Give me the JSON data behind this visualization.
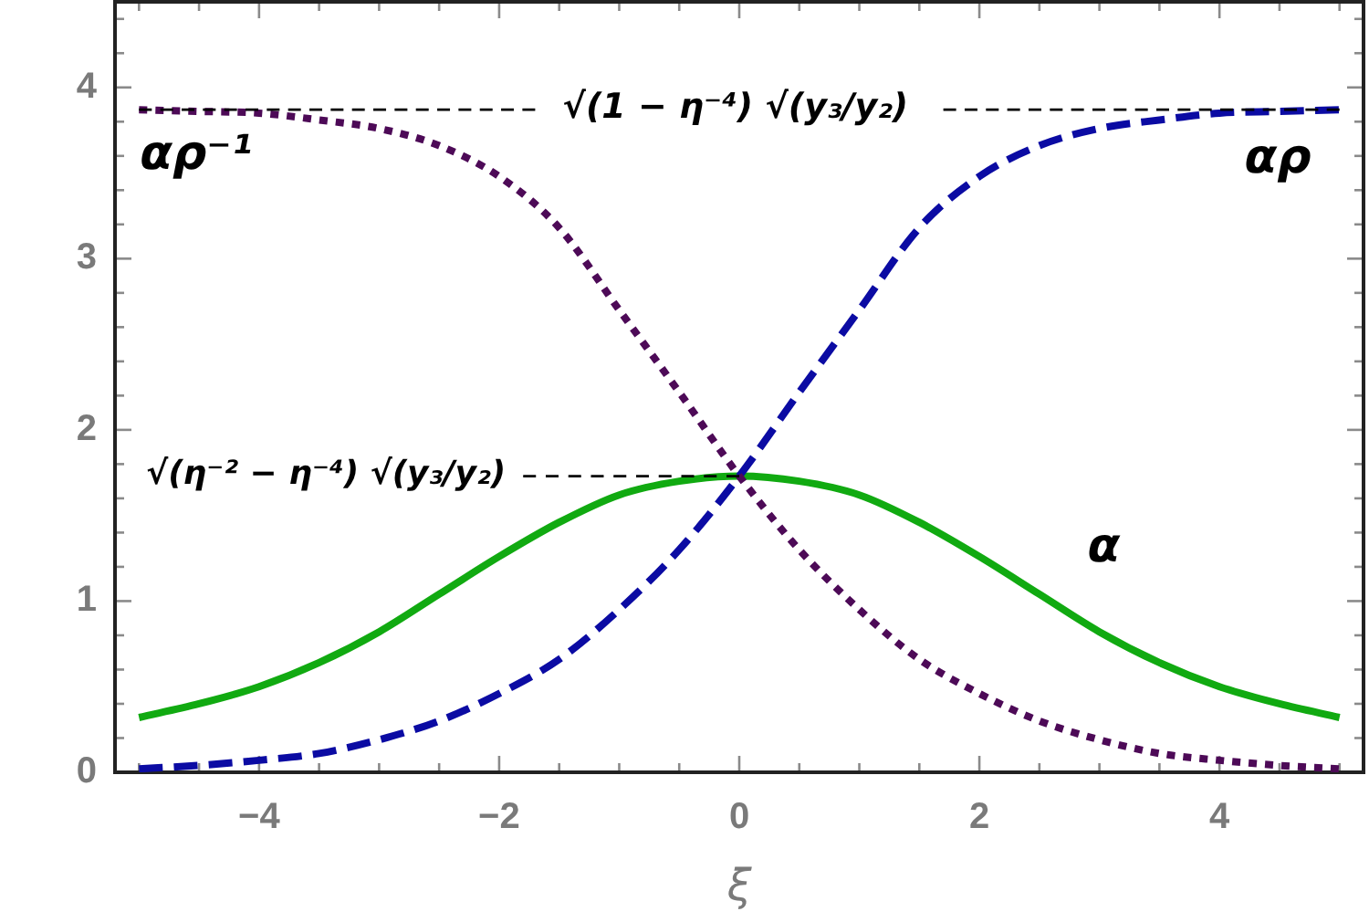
{
  "chart_data": {
    "type": "line",
    "xlabel": "ξ",
    "xlim": [
      -5.2,
      5.2
    ],
    "ylim": [
      0,
      4.5
    ],
    "xticks": [
      {
        "value": -5,
        "label": null
      },
      {
        "value": -4.5,
        "label": null
      },
      {
        "value": -4,
        "label": "−4"
      },
      {
        "value": -3.5,
        "label": null
      },
      {
        "value": -3,
        "label": null
      },
      {
        "value": -2.5,
        "label": null
      },
      {
        "value": -2,
        "label": "−2"
      },
      {
        "value": -1.5,
        "label": null
      },
      {
        "value": -1,
        "label": null
      },
      {
        "value": -0.5,
        "label": null
      },
      0,
      {
        "value": 0.5,
        "label": null
      },
      {
        "value": 1,
        "label": null
      },
      {
        "value": 1.5,
        "label": null
      },
      2,
      {
        "value": 2.5,
        "label": null
      },
      {
        "value": 3,
        "label": null
      },
      {
        "value": 3.5,
        "label": null
      },
      4,
      {
        "value": 4.5,
        "label": null
      },
      {
        "value": 5,
        "label": null
      }
    ],
    "yticks": [
      0,
      {
        "value": 0.2,
        "label": null
      },
      {
        "value": 0.4,
        "label": null
      },
      {
        "value": 0.6,
        "label": null
      },
      {
        "value": 0.8,
        "label": null
      },
      1,
      {
        "value": 1.2,
        "label": null
      },
      {
        "value": 1.4,
        "label": null
      },
      {
        "value": 1.6,
        "label": null
      },
      {
        "value": 1.8,
        "label": null
      },
      2,
      {
        "value": 2.2,
        "label": null
      },
      {
        "value": 2.4,
        "label": null
      },
      {
        "value": 2.6,
        "label": null
      },
      {
        "value": 2.8,
        "label": null
      },
      3,
      {
        "value": 3.2,
        "label": null
      },
      {
        "value": 3.4,
        "label": null
      },
      {
        "value": 3.6,
        "label": null
      },
      {
        "value": 3.8,
        "label": null
      },
      4,
      {
        "value": 4.2,
        "label": null
      },
      {
        "value": 4.4,
        "label": null
      }
    ],
    "series": [
      {
        "name": "α",
        "color": "#11aa11",
        "line_style": "solid",
        "x": [
          -5,
          -4.5,
          -4,
          -3.5,
          -3,
          -2.5,
          -2,
          -1.5,
          -1,
          -0.5,
          0,
          0.5,
          1,
          1.5,
          2,
          2.5,
          3,
          3.5,
          4,
          4.5,
          5
        ],
        "values": [
          0.32,
          0.4,
          0.5,
          0.64,
          0.82,
          1.04,
          1.26,
          1.46,
          1.62,
          1.7,
          1.73,
          1.7,
          1.62,
          1.46,
          1.26,
          1.04,
          0.82,
          0.64,
          0.5,
          0.4,
          0.32
        ]
      },
      {
        "name": "αρ",
        "color": "#0b0ba3",
        "line_style": "dashed",
        "x": [
          -5,
          -4.5,
          -4,
          -3.5,
          -3,
          -2.5,
          -2,
          -1.5,
          -1,
          -0.5,
          0,
          0.5,
          1,
          1.5,
          2,
          2.5,
          3,
          3.5,
          4,
          4.5,
          5
        ],
        "values": [
          0.02,
          0.04,
          0.07,
          0.11,
          0.19,
          0.3,
          0.46,
          0.66,
          0.95,
          1.3,
          1.73,
          2.22,
          2.7,
          3.18,
          3.48,
          3.66,
          3.76,
          3.81,
          3.85,
          3.86,
          3.87
        ]
      },
      {
        "name": "αρ⁻¹",
        "color": "#4d0a57",
        "line_style": "dotted",
        "x": [
          -5,
          -4.5,
          -4,
          -3.5,
          -3,
          -2.5,
          -2,
          -1.5,
          -1,
          -0.5,
          0,
          0.5,
          1,
          1.5,
          2,
          2.5,
          3,
          3.5,
          4,
          4.5,
          5
        ],
        "values": [
          3.87,
          3.86,
          3.85,
          3.81,
          3.76,
          3.66,
          3.48,
          3.18,
          2.7,
          2.22,
          1.73,
          1.3,
          0.95,
          0.66,
          0.46,
          0.3,
          0.19,
          0.11,
          0.07,
          0.04,
          0.02
        ]
      },
      {
        "name": "√(1 − η⁻⁴) √(y₃/y₂)",
        "color": "#000000",
        "line_style": "dashed",
        "x": [
          -5,
          -1.7,
          0,
          1.7,
          5
        ],
        "values": [
          3.87,
          3.87,
          null,
          3.87,
          3.87
        ]
      },
      {
        "name": "√(η⁻² − η⁻⁴) √(y₃/y₂)",
        "color": "#000000",
        "line_style": "dashed",
        "x": [
          -1.8,
          0
        ],
        "values": [
          1.73,
          1.73
        ]
      }
    ]
  }
}
